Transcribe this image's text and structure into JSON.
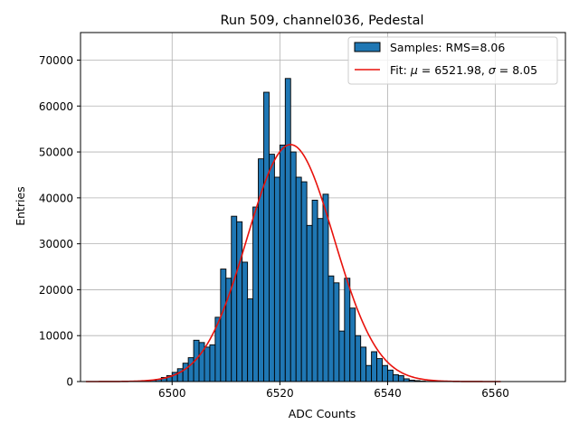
{
  "chart_data": {
    "type": "bar",
    "title": "Run 509, channel036, Pedestal",
    "xlabel": "ADC Counts",
    "ylabel": "Entries",
    "xlim": [
      6483,
      6573
    ],
    "ylim": [
      0,
      76000
    ],
    "xticks": [
      6500,
      6520,
      6540,
      6560
    ],
    "yticks": [
      0,
      10000,
      20000,
      30000,
      40000,
      50000,
      60000,
      70000
    ],
    "grid": true,
    "legend_position": "top-right",
    "bin_width": 1,
    "histogram": {
      "name": "Samples: RMS=8.06",
      "color": "#1f77b4",
      "bin_left_edges": [
        6496,
        6497,
        6498,
        6499,
        6500,
        6501,
        6502,
        6503,
        6504,
        6505,
        6506,
        6507,
        6508,
        6509,
        6510,
        6511,
        6512,
        6513,
        6514,
        6515,
        6516,
        6517,
        6518,
        6519,
        6520,
        6521,
        6522,
        6523,
        6524,
        6525,
        6526,
        6527,
        6528,
        6529,
        6530,
        6531,
        6532,
        6533,
        6534,
        6535,
        6536,
        6537,
        6538,
        6539,
        6540,
        6541,
        6542,
        6543,
        6544,
        6545,
        6546,
        6547,
        6548
      ],
      "counts": [
        300,
        500,
        900,
        1300,
        2000,
        2800,
        4000,
        5200,
        9000,
        8500,
        7500,
        8000,
        14000,
        24500,
        22500,
        36000,
        34800,
        26000,
        18000,
        38000,
        48500,
        63000,
        49500,
        44500,
        51500,
        66000,
        50000,
        44500,
        43500,
        34000,
        39500,
        35500,
        40800,
        23000,
        21500,
        11000,
        22500,
        16000,
        10000,
        7500,
        3500,
        6500,
        5000,
        3500,
        2500,
        1500,
        1300,
        600,
        300,
        200,
        100,
        50,
        30
      ]
    },
    "fit": {
      "name": "Fit: μ = 6521.98, σ = 8.05",
      "color": "#e8120c",
      "mu": 6521.98,
      "sigma": 8.05,
      "amplitude": 51600,
      "x_range": [
        6484,
        6561
      ]
    }
  },
  "legend": {
    "hist_prefix": "Samples: RMS=8.06",
    "fit_prefix": "Fit: ",
    "fit_mu_symbol": "μ",
    "fit_mu_text": " = 6521.98, ",
    "fit_sigma_symbol": "σ",
    "fit_sigma_text": " = 8.05"
  }
}
